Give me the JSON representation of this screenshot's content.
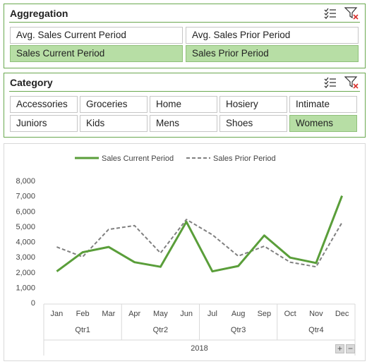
{
  "aggregation": {
    "title": "Aggregation",
    "items": [
      {
        "label": "Avg. Sales Current Period",
        "selected": false
      },
      {
        "label": "Avg. Sales Prior Period",
        "selected": false
      },
      {
        "label": "Sales Current Period",
        "selected": true
      },
      {
        "label": "Sales Prior Period",
        "selected": true
      }
    ]
  },
  "category": {
    "title": "Category",
    "items": [
      {
        "label": "Accessories",
        "selected": false
      },
      {
        "label": "Groceries",
        "selected": false
      },
      {
        "label": "Home",
        "selected": false
      },
      {
        "label": "Hosiery",
        "selected": false
      },
      {
        "label": "Intimate",
        "selected": false
      },
      {
        "label": "Juniors",
        "selected": false
      },
      {
        "label": "Kids",
        "selected": false
      },
      {
        "label": "Mens",
        "selected": false
      },
      {
        "label": "Shoes",
        "selected": false
      },
      {
        "label": "Womens",
        "selected": true
      }
    ]
  },
  "icons": {
    "multi_select": "multi-select-icon",
    "clear_filter": "clear-filter-icon"
  },
  "colors": {
    "accent": "#6aa84f",
    "selected_fill": "#b7dea5",
    "current_line": "#5a9e3a",
    "prior_line": "#808080"
  },
  "chart_data": {
    "type": "line",
    "categories": [
      "Jan",
      "Feb",
      "Mar",
      "Apr",
      "May",
      "Jun",
      "Jul",
      "Aug",
      "Sep",
      "Oct",
      "Nov",
      "Dec"
    ],
    "groups": [
      {
        "label": "Qtr1",
        "span": 3
      },
      {
        "label": "Qtr2",
        "span": 3
      },
      {
        "label": "Qtr3",
        "span": 3
      },
      {
        "label": "Qtr4",
        "span": 3
      }
    ],
    "year_label": "2018",
    "series": [
      {
        "name": "Sales Current Period",
        "style": "solid",
        "color": "#5a9e3a",
        "values": [
          2050,
          3300,
          3650,
          2650,
          2350,
          5300,
          2050,
          2400,
          4400,
          2950,
          2600,
          7000
        ]
      },
      {
        "name": "Sales Prior Period",
        "style": "dashed",
        "color": "#808080",
        "values": [
          3650,
          3000,
          4800,
          5050,
          3250,
          5450,
          4450,
          3050,
          3700,
          2650,
          2350,
          5250
        ]
      }
    ],
    "yticks": [
      "0",
      "1,000",
      "2,000",
      "3,000",
      "4,000",
      "5,000",
      "6,000",
      "7,000",
      "8,000"
    ],
    "ylim": [
      0,
      8000
    ],
    "legend": "top",
    "grid": false
  },
  "zoom": {
    "plus": "+",
    "minus": "−"
  }
}
